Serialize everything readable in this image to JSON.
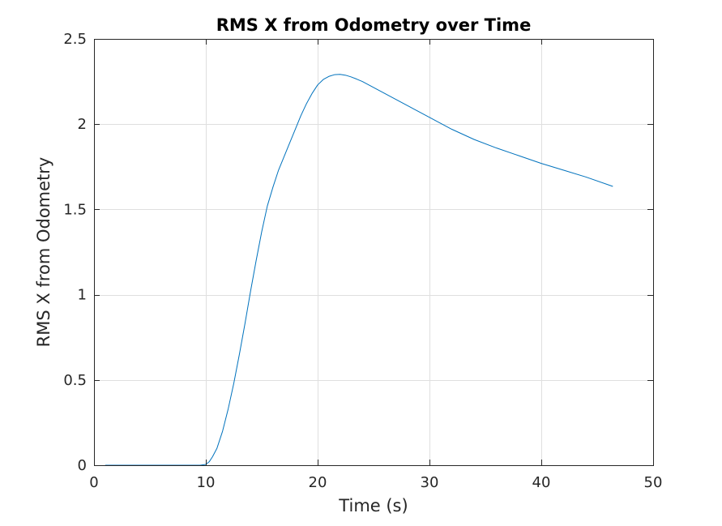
{
  "chart_data": {
    "type": "line",
    "title": "RMS X from Odometry over Time",
    "xlabel": "Time (s)",
    "ylabel": "RMS X from Odometry",
    "xlim": [
      0,
      50
    ],
    "ylim": [
      0,
      2.5
    ],
    "xticks": [
      0,
      10,
      20,
      30,
      40,
      50
    ],
    "yticks": [
      0,
      0.5,
      1,
      1.5,
      2,
      2.5
    ],
    "xtick_labels": [
      "0",
      "10",
      "20",
      "30",
      "40",
      "50"
    ],
    "ytick_labels": [
      "0",
      "0.5",
      "1",
      "1.5",
      "2",
      "2.5"
    ],
    "grid": true,
    "box": true,
    "series": [
      {
        "color": "#0072bd",
        "x": [
          1.0,
          2,
          4,
          6,
          8,
          9.5,
          10.0,
          10.3,
          10.6,
          11.0,
          11.5,
          12.0,
          12.5,
          13.0,
          13.5,
          14.0,
          14.5,
          15.0,
          15.5,
          16.0,
          16.5,
          17.0,
          17.5,
          18.0,
          18.5,
          19.0,
          19.5,
          20.0,
          20.5,
          21.0,
          21.5,
          22.0,
          22.5,
          23.0,
          23.5,
          24.0,
          25.0,
          26.0,
          27.0,
          28.0,
          29.0,
          30.0,
          32.0,
          34.0,
          36.0,
          38.0,
          40.0,
          42.0,
          44.0,
          46.4
        ],
        "y": [
          0,
          0,
          0,
          0,
          0,
          0,
          0.005,
          0.02,
          0.05,
          0.1,
          0.2,
          0.33,
          0.48,
          0.65,
          0.83,
          1.02,
          1.2,
          1.37,
          1.52,
          1.63,
          1.73,
          1.81,
          1.89,
          1.97,
          2.05,
          2.12,
          2.18,
          2.23,
          2.262,
          2.28,
          2.29,
          2.292,
          2.287,
          2.277,
          2.264,
          2.25,
          2.215,
          2.18,
          2.145,
          2.11,
          2.075,
          2.04,
          1.97,
          1.91,
          1.86,
          1.815,
          1.77,
          1.73,
          1.69,
          1.635
        ]
      }
    ]
  }
}
